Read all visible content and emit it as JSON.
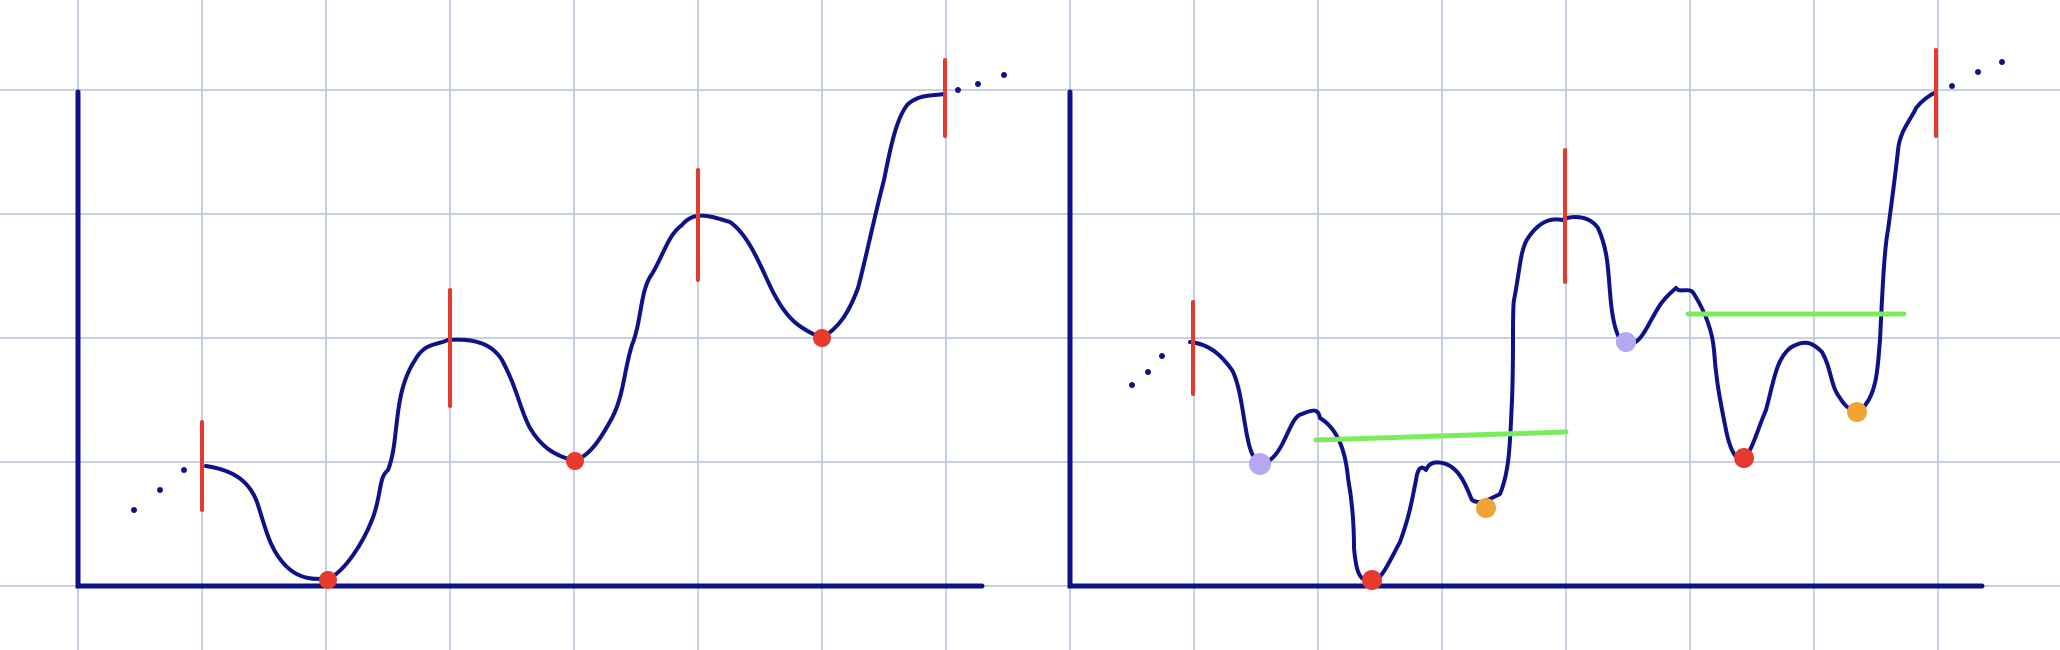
{
  "colors": {
    "background": "#ffffff",
    "grid": "#b5c0dc",
    "axis": "#0d1288",
    "curve": "#0d1288",
    "peak_marker": "#e63a2e",
    "valley_marker": "#e63a2e",
    "lavender_marker": "#b6a7f2",
    "orange_marker": "#f0a436",
    "level_line": "#7cec5c"
  }
}
